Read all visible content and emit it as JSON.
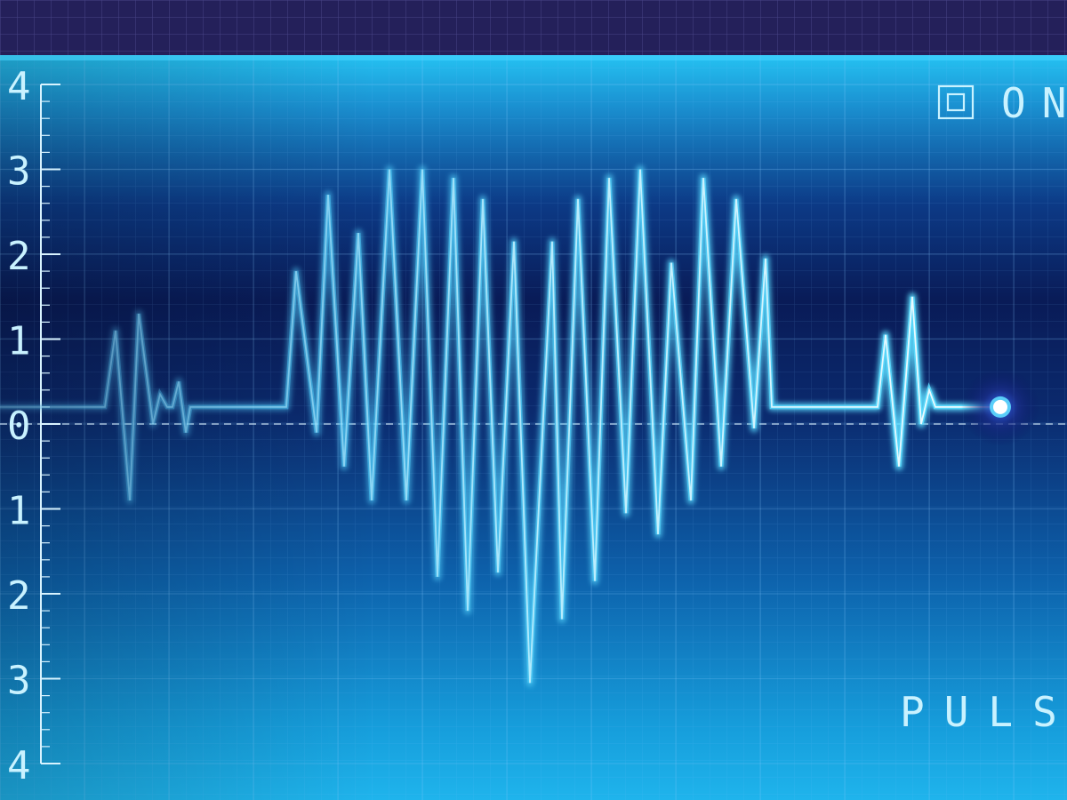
{
  "display": {
    "status_label": "ON",
    "mode_label": "PULSE",
    "icon": "power-square-icon",
    "y_axis_ticks": [
      "4",
      "3",
      "2",
      "1",
      "0",
      "1",
      "2",
      "3",
      "4"
    ]
  },
  "colors": {
    "header_band": "#24205a",
    "panel_light": "#1fb2ea",
    "panel_dark": "#0a1f5a",
    "trace_glow": "#5fdcff",
    "trace_core": "#e8fbff",
    "lcd_text": "#c9f2ff",
    "baseline": "#d6eefc"
  },
  "waveform": {
    "y_range": [
      -4,
      4
    ],
    "baseline_level": 0.2,
    "points": [
      [
        0,
        0.2
      ],
      [
        118,
        0.2
      ],
      [
        130,
        1.1
      ],
      [
        146,
        -0.9
      ],
      [
        156,
        1.3
      ],
      [
        172,
        0.0
      ],
      [
        180,
        0.35
      ],
      [
        188,
        0.2
      ],
      [
        194,
        0.2
      ],
      [
        201,
        0.5
      ],
      [
        209,
        -0.1
      ],
      [
        214,
        0.2
      ],
      [
        322,
        0.2
      ],
      [
        333,
        1.8
      ],
      [
        356,
        -0.1
      ],
      [
        369,
        2.7
      ],
      [
        387,
        -0.5
      ],
      [
        403,
        2.25
      ],
      [
        418,
        -0.9
      ],
      [
        438,
        3.0
      ],
      [
        457,
        -0.9
      ],
      [
        475,
        3.0
      ],
      [
        492,
        -1.8
      ],
      [
        510,
        2.9
      ],
      [
        526,
        -2.2
      ],
      [
        543,
        2.65
      ],
      [
        560,
        -1.75
      ],
      [
        578,
        2.15
      ],
      [
        596,
        -3.05
      ],
      [
        621,
        2.15
      ],
      [
        632,
        -2.3
      ],
      [
        650,
        2.65
      ],
      [
        669,
        -1.85
      ],
      [
        685,
        2.9
      ],
      [
        704,
        -1.05
      ],
      [
        720,
        3.0
      ],
      [
        740,
        -1.3
      ],
      [
        755,
        1.9
      ],
      [
        777,
        -0.9
      ],
      [
        791,
        2.9
      ],
      [
        811,
        -0.5
      ],
      [
        828,
        2.65
      ],
      [
        848,
        -0.05
      ],
      [
        861,
        1.95
      ],
      [
        868,
        0.2
      ],
      [
        987,
        0.2
      ],
      [
        996,
        1.05
      ],
      [
        1011,
        -0.5
      ],
      [
        1026,
        1.5
      ],
      [
        1036,
        0.0
      ],
      [
        1045,
        0.4
      ],
      [
        1052,
        0.2
      ],
      [
        1125,
        0.2
      ]
    ]
  }
}
